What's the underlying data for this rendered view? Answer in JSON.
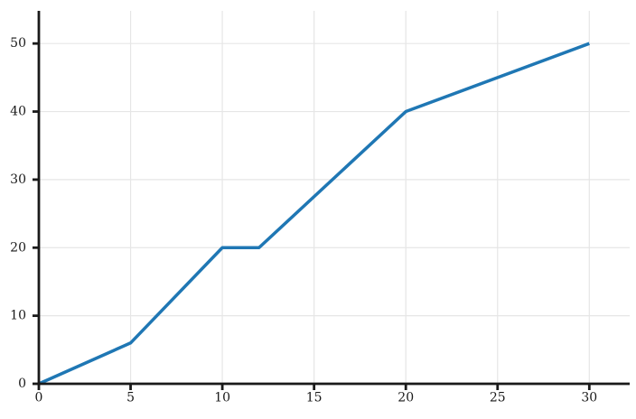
{
  "chart_data": {
    "type": "line",
    "series": [
      {
        "name": "series-1",
        "x": [
          0,
          5,
          10,
          12,
          20,
          30
        ],
        "y": [
          0,
          6,
          20,
          20,
          40,
          50
        ]
      }
    ],
    "title": "",
    "xlabel": "",
    "ylabel": "",
    "xticks": [
      0,
      5,
      10,
      15,
      20,
      25,
      30
    ],
    "yticks": [
      0,
      10,
      20,
      30,
      40,
      50
    ],
    "xtick_labels": [
      "0",
      "5",
      "10",
      "15",
      "20",
      "25",
      "30"
    ],
    "ytick_labels": [
      "0",
      "10",
      "20",
      "30",
      "40",
      "50"
    ],
    "xlim": [
      0,
      32.2
    ],
    "ylim": [
      0,
      54.8
    ],
    "grid": true,
    "legend": false,
    "colors": {
      "line": "#1f77b4",
      "grid": "#e6e6e6",
      "axis": "#1a1a1a",
      "tick_text": "#1a1a1a",
      "background": "#ffffff"
    },
    "line_width": 3.5
  }
}
